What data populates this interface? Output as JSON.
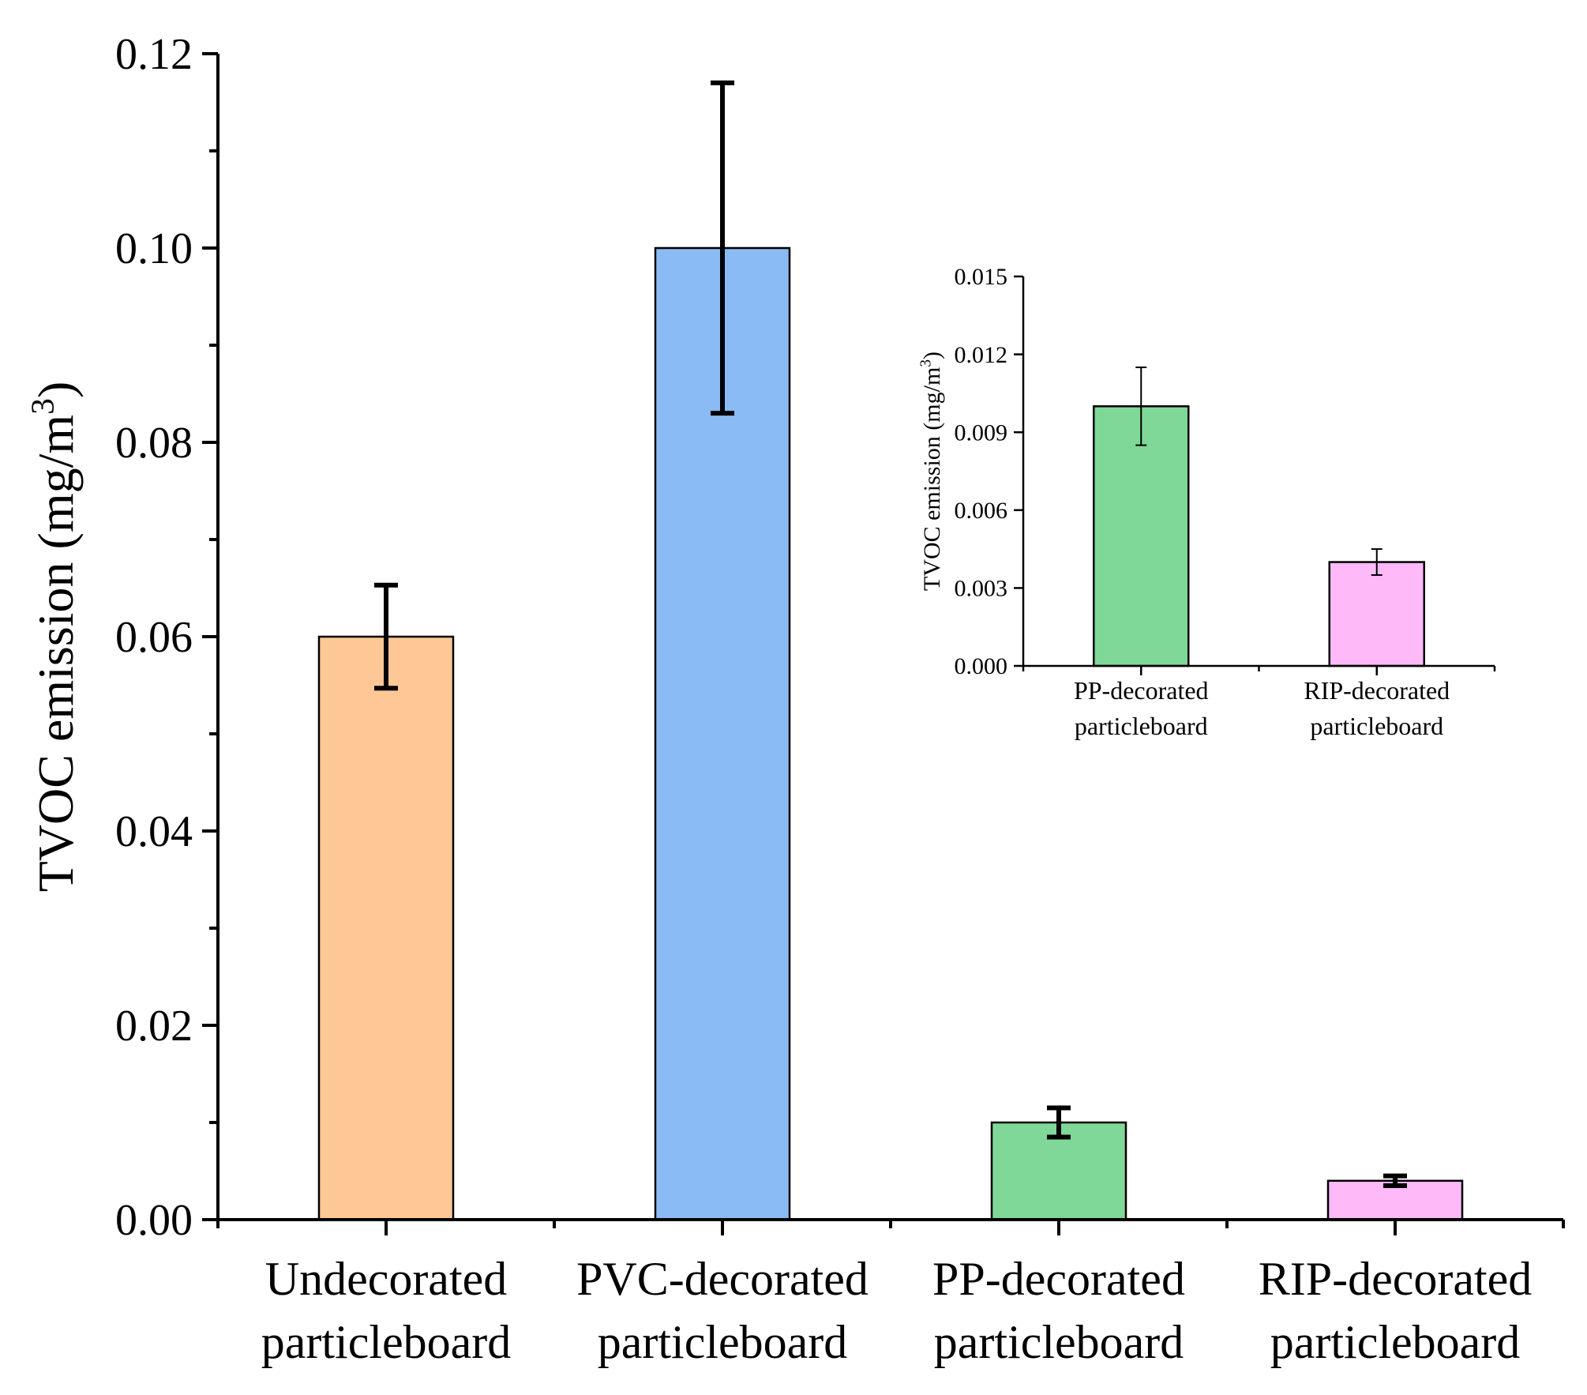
{
  "chart_data": [
    {
      "type": "bar",
      "categories": [
        [
          "Undecorated",
          "particleboard"
        ],
        [
          "PVC-decorated",
          "particleboard"
        ],
        [
          "PP-decorated",
          "particleboard"
        ],
        [
          "RIP-decorated",
          "particleboard"
        ]
      ],
      "values": [
        0.06,
        0.1,
        0.01,
        0.004
      ],
      "errors": [
        0.0053,
        0.017,
        0.0015,
        0.0005
      ],
      "colors": [
        "#FDC895",
        "#8BBBF5",
        "#7FD897",
        "#FDB9F8"
      ],
      "ylabel": "TVOC emission (mg/m",
      "ylabel_sup": "3",
      "ylabel_close": ")",
      "ylim": [
        0,
        0.12
      ],
      "yticks": [
        "0.00",
        "0.02",
        "0.04",
        "0.06",
        "0.08",
        "0.10",
        "0.12"
      ],
      "minor_ticks": true
    },
    {
      "type": "bar",
      "inset": true,
      "categories": [
        [
          "PP-decorated",
          "particleboard"
        ],
        [
          "RIP-decorated",
          "particleboard"
        ]
      ],
      "values": [
        0.01,
        0.004
      ],
      "errors": [
        0.0015,
        0.0005
      ],
      "colors": [
        "#7FD897",
        "#FDB9F8"
      ],
      "ylabel": "TVOC emission (mg/m",
      "ylabel_sup": "3",
      "ylabel_close": ")",
      "ylim": [
        0,
        0.015
      ],
      "yticks": [
        "0.000",
        "0.003",
        "0.006",
        "0.009",
        "0.012",
        "0.015"
      ]
    }
  ]
}
